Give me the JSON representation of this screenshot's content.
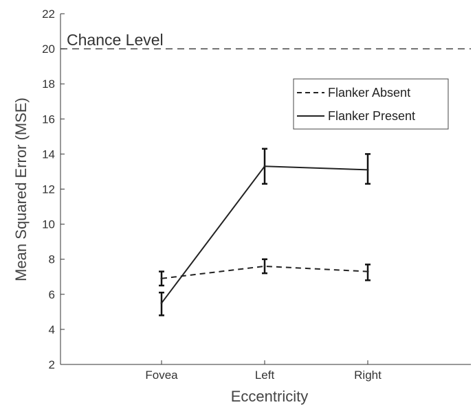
{
  "chart_data": {
    "type": "line",
    "title": "",
    "xlabel": "Eccentricity",
    "ylabel": "Mean Squared Error (MSE)",
    "categories": [
      "Fovea",
      "Left",
      "Right"
    ],
    "ylim": [
      2,
      22
    ],
    "yticks": [
      2,
      4,
      6,
      8,
      10,
      12,
      14,
      16,
      18,
      20,
      22
    ],
    "grid": false,
    "legend_position": "top-right",
    "series": [
      {
        "name": "Flanker Absent",
        "style": "dashed",
        "color": "#222222",
        "values": [
          6.9,
          7.6,
          7.3
        ],
        "error_low": [
          6.5,
          7.2,
          6.8
        ],
        "error_high": [
          7.3,
          8.0,
          7.7
        ]
      },
      {
        "name": "Flanker Present",
        "style": "solid",
        "color": "#222222",
        "values": [
          5.5,
          13.3,
          13.1
        ],
        "error_low": [
          4.8,
          12.3,
          12.3
        ],
        "error_high": [
          6.1,
          14.3,
          14.0
        ]
      }
    ],
    "reference_line": {
      "label": "Chance Level",
      "value": 20,
      "style": "dashed",
      "color": "#444444"
    }
  }
}
